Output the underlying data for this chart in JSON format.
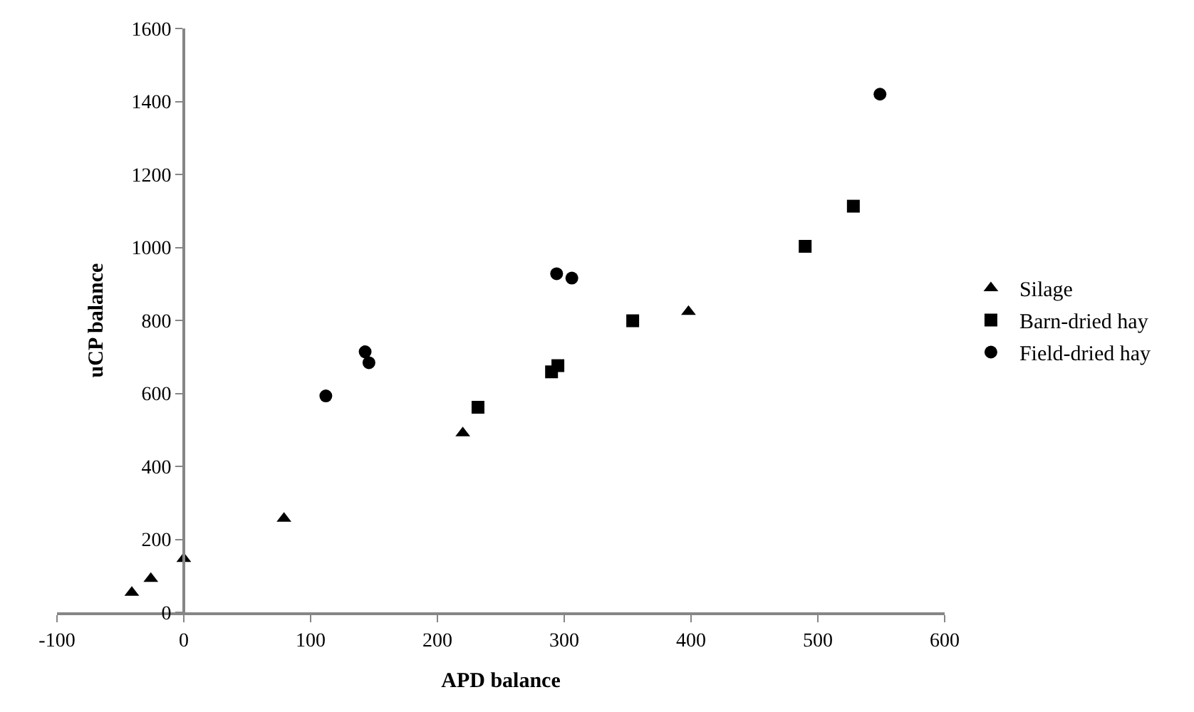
{
  "chart_data": {
    "type": "scatter",
    "xlabel": "APD balance",
    "ylabel": "uCP balance",
    "xlim": [
      -100,
      600
    ],
    "xticks": [
      -100,
      0,
      100,
      200,
      300,
      400,
      500,
      600
    ],
    "ylim": [
      0,
      1600
    ],
    "yticks": [
      0,
      200,
      400,
      600,
      800,
      1000,
      1200,
      1400,
      1600
    ],
    "legend": "right",
    "series": [
      {
        "name": "Silage",
        "color": "#000000",
        "marker": "triangle",
        "x": [
          -41,
          -26,
          0,
          79,
          220,
          398
        ],
        "values": [
          54,
          92,
          147,
          257,
          491,
          824
        ]
      },
      {
        "name": "Barn-dried hay",
        "color": "#000000",
        "marker": "square",
        "x": [
          232,
          290,
          295,
          354,
          490,
          528
        ],
        "values": [
          562,
          659,
          676,
          799,
          1003,
          1113
        ]
      },
      {
        "name": "Field-dried hay",
        "color": "#000000",
        "marker": "circle",
        "x": [
          112,
          143,
          146,
          294,
          306,
          549
        ],
        "values": [
          593,
          714,
          684,
          928,
          916,
          1420
        ]
      }
    ]
  }
}
